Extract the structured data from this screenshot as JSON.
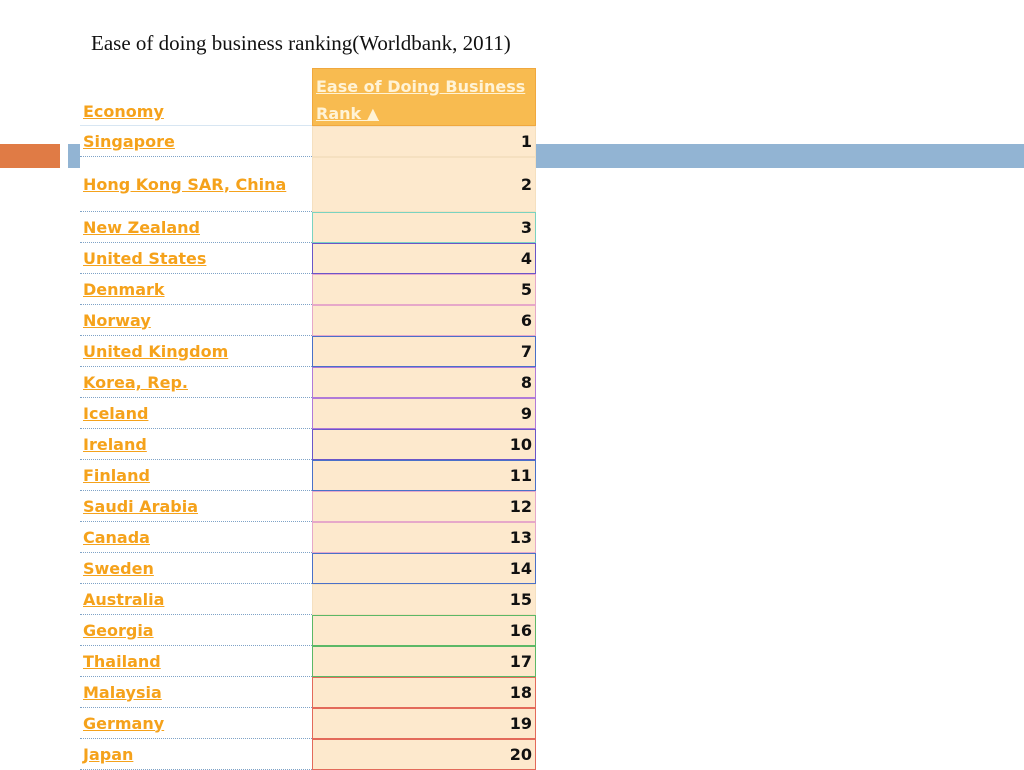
{
  "slide": {
    "title": "Ease of doing business ranking(Worldbank, 2011)"
  },
  "table": {
    "headers": {
      "economy": "Economy",
      "rank": "Ease of Doing Business Rank ▲"
    },
    "rows": [
      {
        "economy": "Singapore",
        "rank": "1"
      },
      {
        "economy": "Hong Kong SAR, China",
        "rank": "2"
      },
      {
        "economy": "New Zealand",
        "rank": "3"
      },
      {
        "economy": "United States",
        "rank": "4"
      },
      {
        "economy": "Denmark",
        "rank": "5"
      },
      {
        "economy": "Norway",
        "rank": "6"
      },
      {
        "economy": "United Kingdom",
        "rank": "7"
      },
      {
        "economy": "Korea, Rep.",
        "rank": "8"
      },
      {
        "economy": "Iceland",
        "rank": "9"
      },
      {
        "economy": "Ireland",
        "rank": "10"
      },
      {
        "economy": "Finland",
        "rank": "11"
      },
      {
        "economy": "Saudi Arabia",
        "rank": "12"
      },
      {
        "economy": "Canada",
        "rank": "13"
      },
      {
        "economy": "Sweden",
        "rank": "14"
      },
      {
        "economy": "Australia",
        "rank": "15"
      },
      {
        "economy": "Georgia",
        "rank": "16"
      },
      {
        "economy": "Thailand",
        "rank": "17"
      },
      {
        "economy": "Malaysia",
        "rank": "18"
      },
      {
        "economy": "Germany",
        "rank": "19"
      },
      {
        "economy": "Japan",
        "rank": "20"
      }
    ]
  },
  "colors": {
    "link": "#f5a21b",
    "rank_cell_bg": "#fde9cd",
    "header_rank_bg": "#f8bb50",
    "accent_bar_orange": "#e07b45",
    "accent_bar_blue": "#92b4d3"
  }
}
